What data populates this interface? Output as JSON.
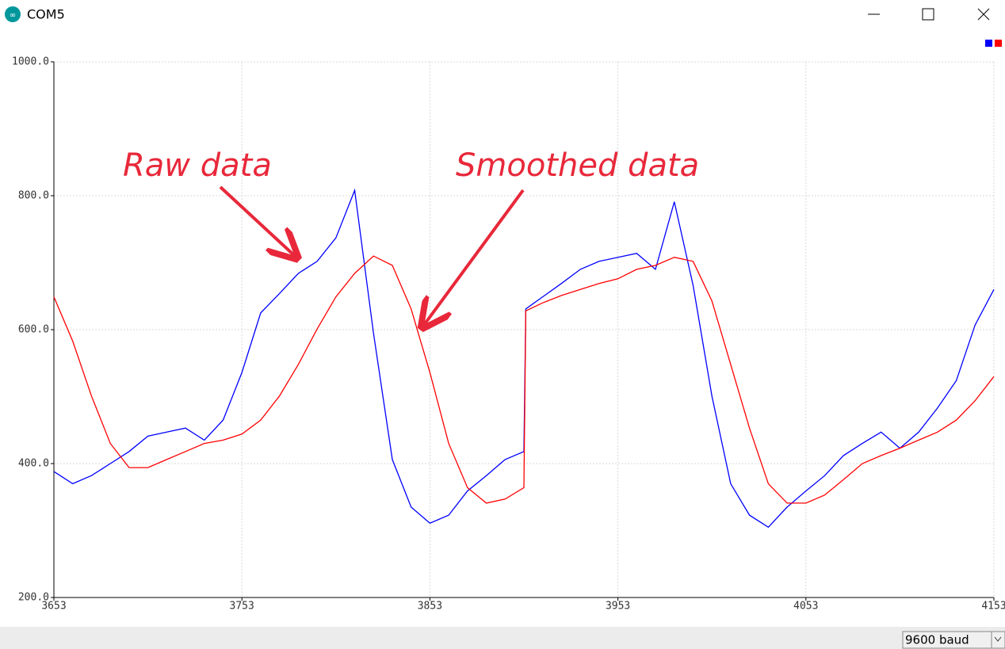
{
  "window": {
    "title": "COM5",
    "baud": "9600 baud"
  },
  "chart_data": {
    "type": "line",
    "x": [
      3653,
      3663,
      3673,
      3683,
      3693,
      3703,
      3713,
      3723,
      3733,
      3743,
      3753,
      3763,
      3773,
      3783,
      3793,
      3803,
      3813,
      3823,
      3833,
      3843,
      3853,
      3863,
      3873,
      3883,
      3893,
      3903,
      3904,
      3913,
      3923,
      3933,
      3943,
      3953,
      3963,
      3973,
      3983,
      3993,
      4003,
      4013,
      4023,
      4033,
      4043,
      4053,
      4063,
      4073,
      4083,
      4093,
      4103,
      4113,
      4123,
      4133,
      4143,
      4153
    ],
    "series": [
      {
        "color": "#0000ff",
        "values": [
          388,
          370,
          382,
          400,
          418,
          441,
          447,
          453,
          435,
          465,
          536,
          625,
          654,
          684,
          702,
          737,
          808,
          595,
          406,
          335,
          311,
          323,
          359,
          382,
          406,
          418,
          631,
          649,
          669,
          690,
          702,
          708,
          714,
          690,
          791,
          666,
          501,
          370,
          323,
          305,
          335,
          359,
          382,
          412,
          430,
          447,
          423,
          447,
          483,
          524,
          607,
          660
        ]
      },
      {
        "color": "#ff0000",
        "values": [
          649,
          583,
          501,
          430,
          394,
          394,
          406,
          418,
          430,
          435,
          444,
          465,
          501,
          548,
          601,
          649,
          684,
          710,
          696,
          631,
          536,
          430,
          364,
          341,
          347,
          364,
          628,
          640,
          651,
          660,
          669,
          676,
          690,
          696,
          708,
          702,
          643,
          548,
          453,
          370,
          341,
          341,
          353,
          376,
          400,
          412,
          423,
          435,
          447,
          465,
          494,
          530
        ]
      }
    ],
    "xlim": [
      3653,
      4153
    ],
    "ylim": [
      200,
      1000
    ],
    "xticks": [
      3653,
      3753,
      3853,
      3953,
      4053,
      4153
    ],
    "yticks": [
      {
        "value": 200,
        "label": "200.0"
      },
      {
        "value": 400,
        "label": "400.0"
      },
      {
        "value": 600,
        "label": "600.0"
      },
      {
        "value": 800,
        "label": "800.0"
      },
      {
        "value": 1000,
        "label": "1000.0"
      }
    ],
    "grid": true,
    "annotations": [
      "Raw data",
      "Smoothed data"
    ]
  }
}
